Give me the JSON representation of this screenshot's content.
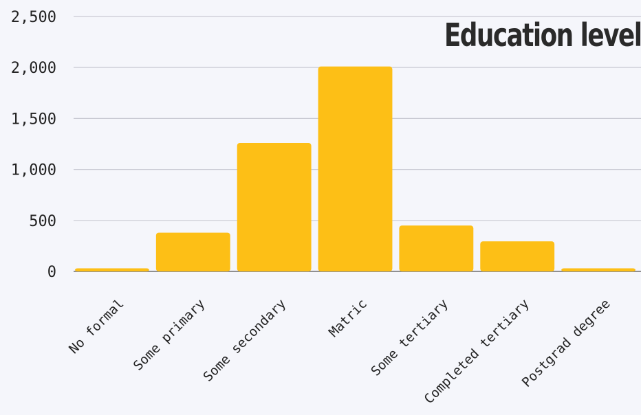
{
  "chart_data": {
    "type": "bar",
    "title": "Education level",
    "categories": [
      "No formal",
      "Some primary",
      "Some secondary",
      "Matric",
      "Some tertiary",
      "Completed tertiary",
      "Postgrad degree"
    ],
    "values": [
      30,
      380,
      1260,
      2010,
      450,
      295,
      30
    ],
    "ylim": [
      0,
      2500
    ],
    "yticks": [
      0,
      500,
      1000,
      1500,
      2000,
      2500
    ],
    "ytick_labels": [
      "0",
      "500",
      "1,000",
      "1,500",
      "2,000",
      "2,500"
    ],
    "grid": true,
    "bar_color": "#fdbf16",
    "grid_color": "#c9cad3",
    "axis_color": "#6e6e6e"
  }
}
